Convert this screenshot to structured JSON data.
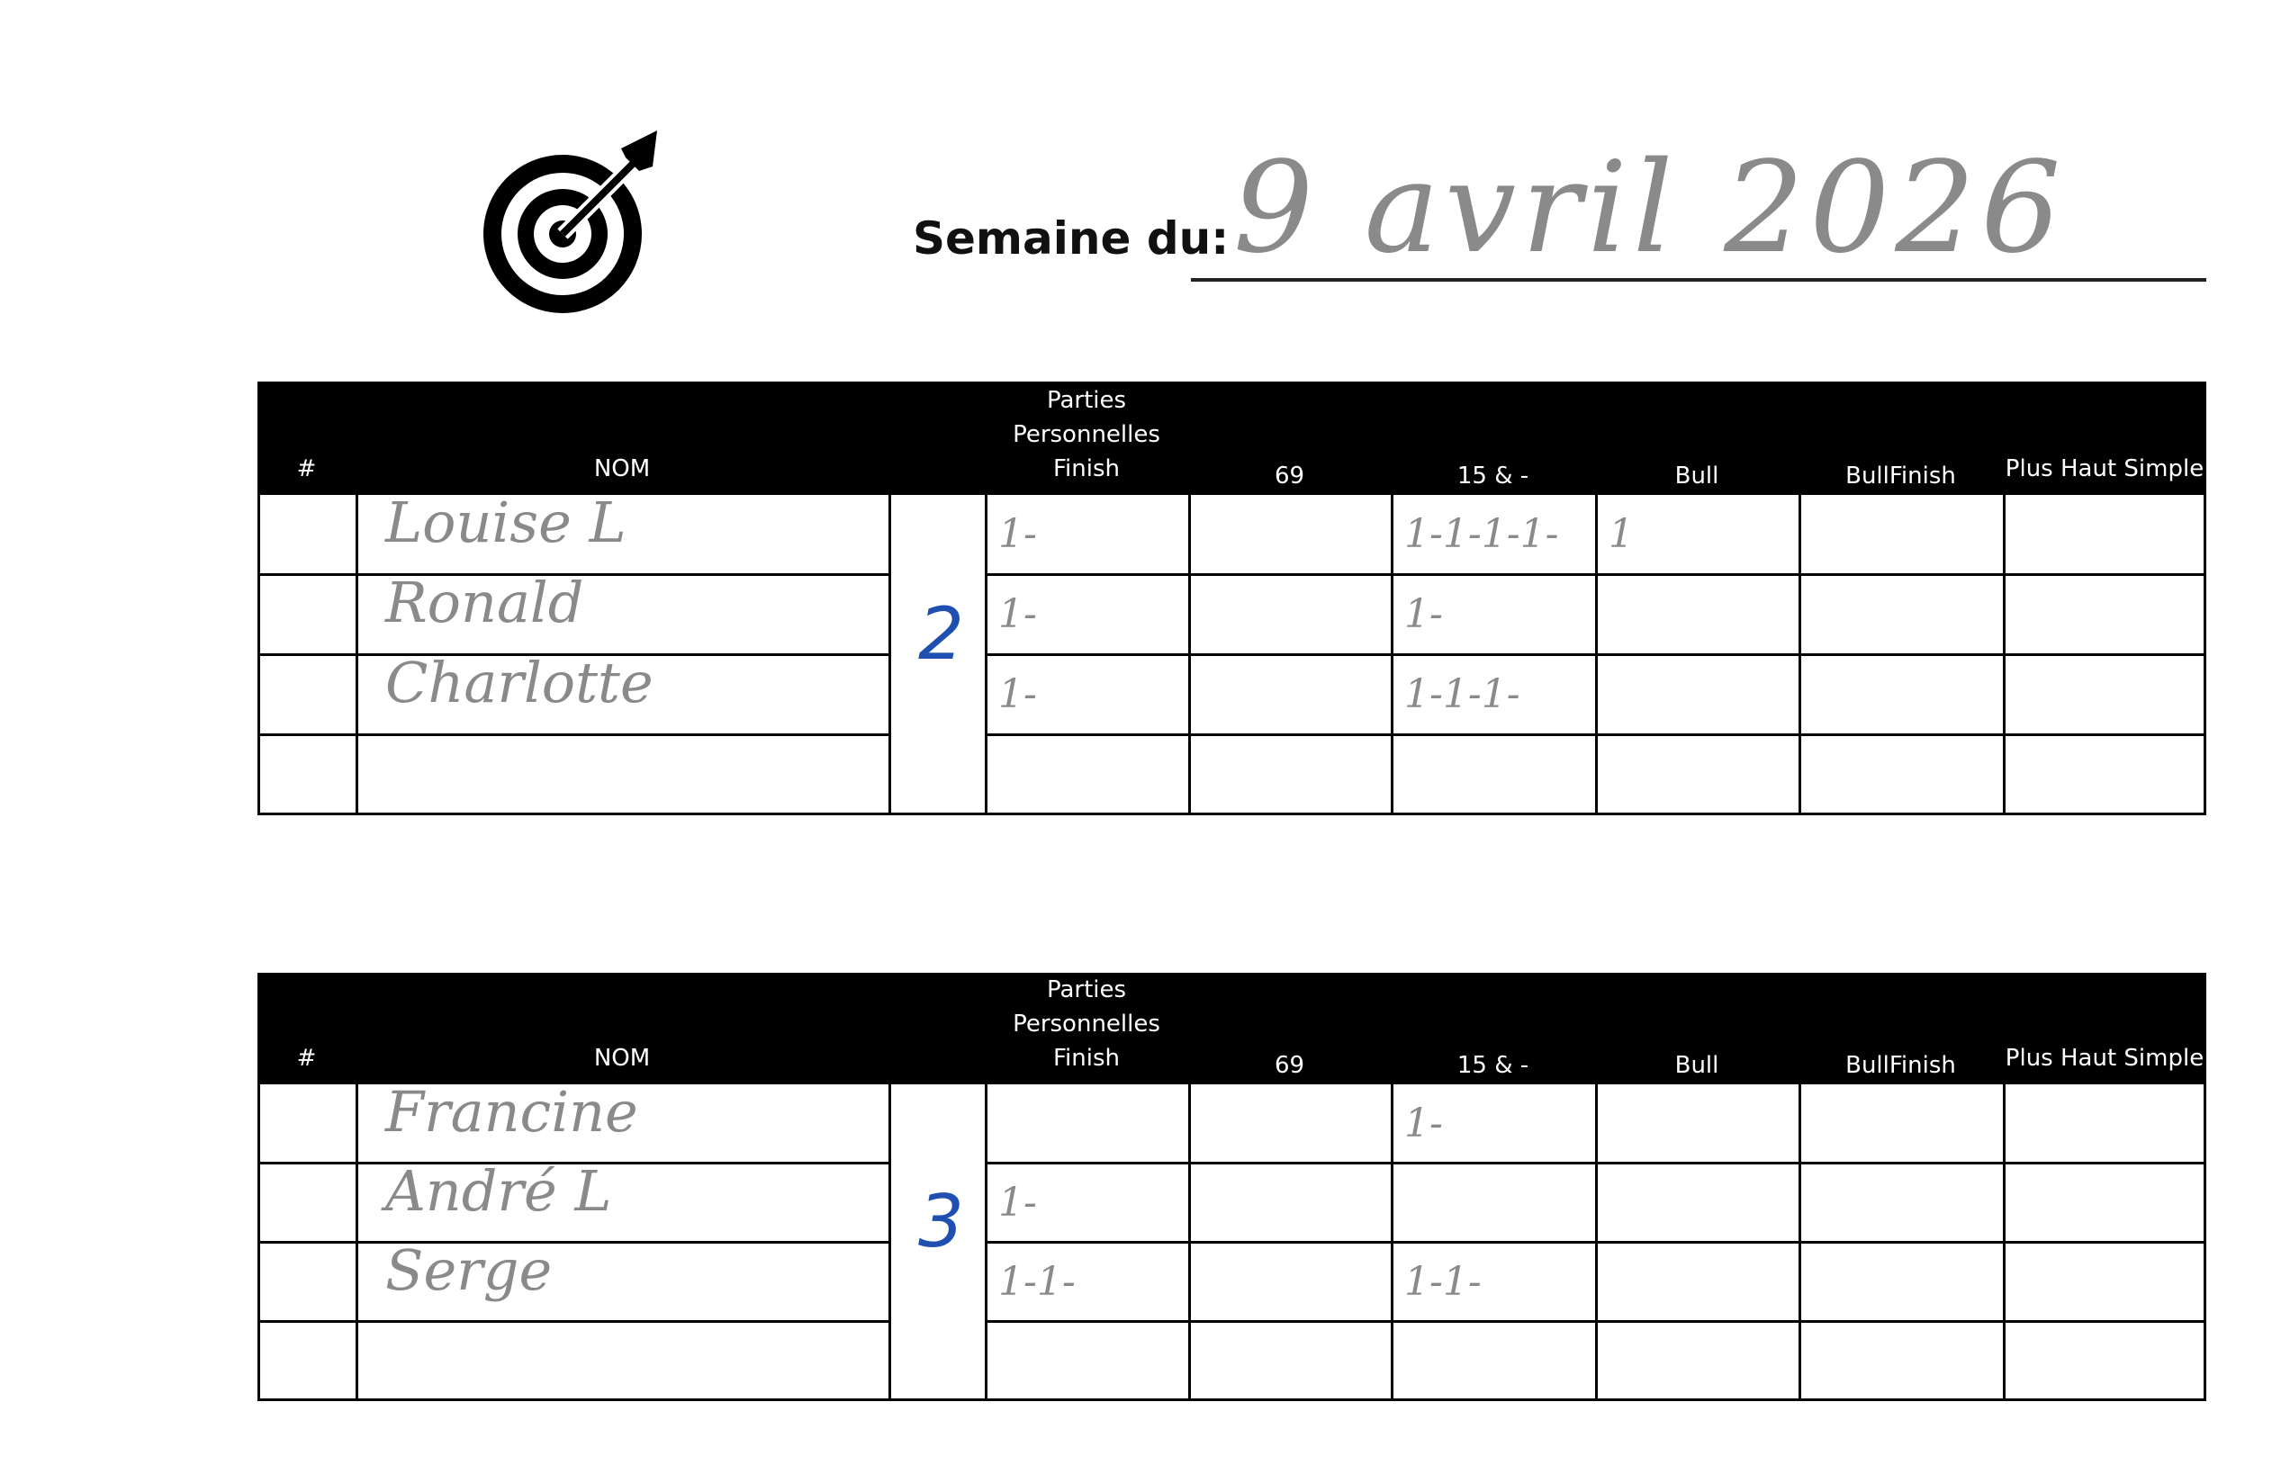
{
  "header": {
    "week_label": "Semaine du:",
    "week_value": "9 avril 2026",
    "logo_icon": "target-bullseye-icon"
  },
  "columns": [
    "#",
    "NOM",
    "",
    "Parties Personnelles Finish",
    "69",
    "15 & -",
    "Bull",
    "BullFinish",
    "Plus Haut Simple"
  ],
  "ink_colors": {
    "pencil": "#8a8a8a",
    "group_pen": "#1f4fb0"
  },
  "teams": [
    {
      "group": "2",
      "rows": [
        {
          "number": "",
          "name": "Louise L",
          "parties": "1-",
          "s69": "",
          "s15": "1-1-1-1-",
          "bull": "1",
          "bullfinish": "",
          "plushaut": ""
        },
        {
          "number": "",
          "name": "Ronald",
          "parties": "1-",
          "s69": "",
          "s15": "1-",
          "bull": "",
          "bullfinish": "",
          "plushaut": ""
        },
        {
          "number": "",
          "name": "Charlotte",
          "parties": "1-",
          "s69": "",
          "s15": "1-1-1-",
          "bull": "",
          "bullfinish": "",
          "plushaut": ""
        },
        {
          "number": "",
          "name": "",
          "parties": "",
          "s69": "",
          "s15": "",
          "bull": "",
          "bullfinish": "",
          "plushaut": ""
        }
      ]
    },
    {
      "group": "3",
      "rows": [
        {
          "number": "",
          "name": "Francine",
          "parties": "",
          "s69": "",
          "s15": "1-",
          "bull": "",
          "bullfinish": "",
          "plushaut": ""
        },
        {
          "number": "",
          "name": "André L",
          "parties": "1-",
          "s69": "",
          "s15": "",
          "bull": "",
          "bullfinish": "",
          "plushaut": ""
        },
        {
          "number": "",
          "name": "Serge",
          "parties": "1-1-",
          "s69": "",
          "s15": "1-1-",
          "bull": "",
          "bullfinish": "",
          "plushaut": ""
        },
        {
          "number": "",
          "name": "",
          "parties": "",
          "s69": "",
          "s15": "",
          "bull": "",
          "bullfinish": "",
          "plushaut": ""
        }
      ]
    }
  ]
}
